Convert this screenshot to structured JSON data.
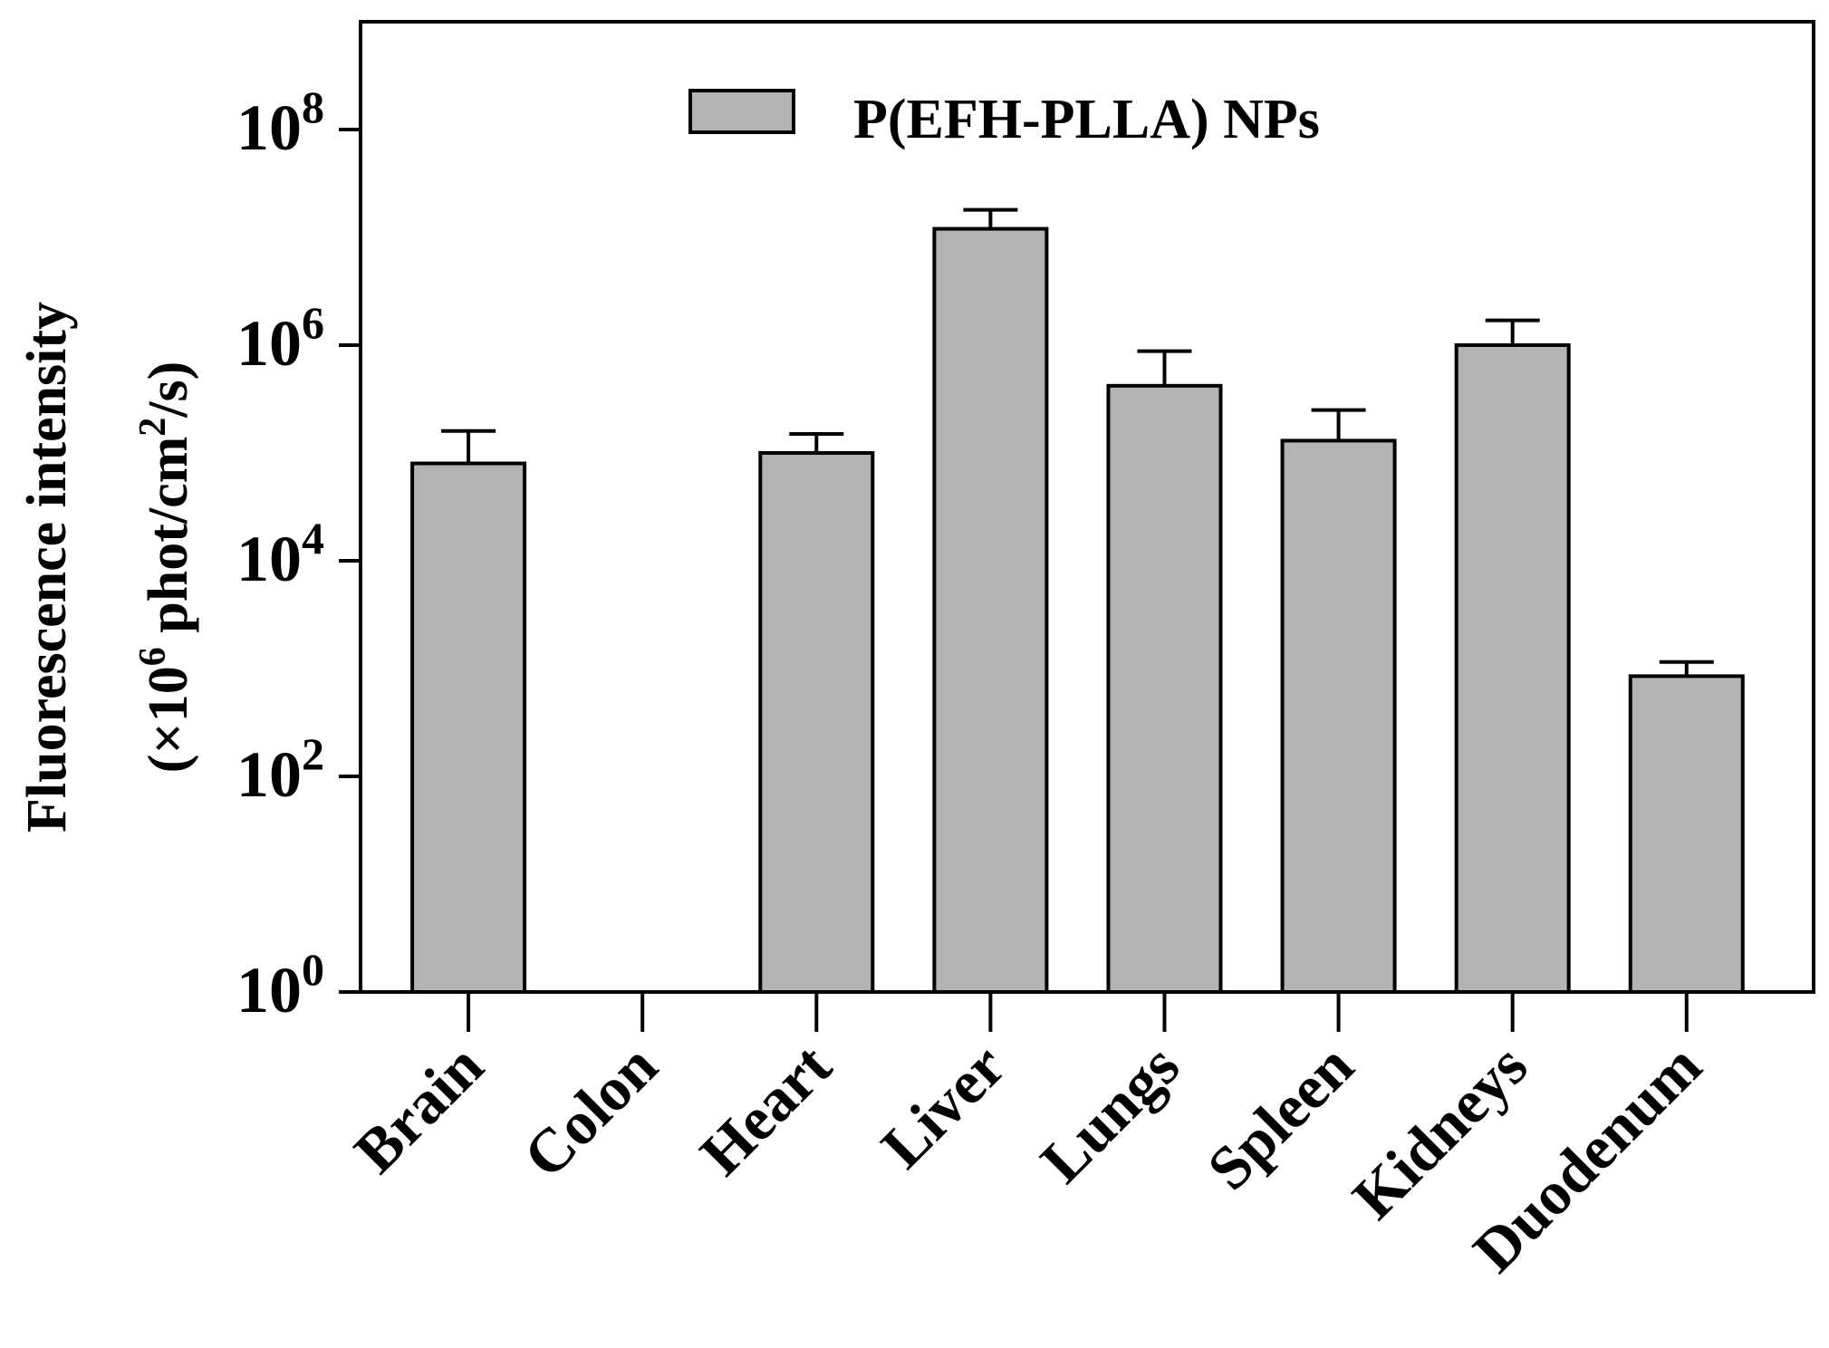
{
  "chart_data": {
    "type": "bar",
    "y_scale": "log10",
    "ylim": [
      1,
      1000000000
    ],
    "yticks": [
      {
        "exp": 0,
        "base": "10",
        "sup": "0"
      },
      {
        "exp": 2,
        "base": "10",
        "sup": "2"
      },
      {
        "exp": 4,
        "base": "10",
        "sup": "4"
      },
      {
        "exp": 6,
        "base": "10",
        "sup": "6"
      },
      {
        "exp": 8,
        "base": "10",
        "sup": "8"
      }
    ],
    "ylabel": {
      "line1": "Fluorescence intensity",
      "line2_prefix": "(×10",
      "line2_sup1": "6",
      "line2_mid": " phot/cm",
      "line2_sup2": "2",
      "line2_suffix": "/s)"
    },
    "legend": {
      "label": "P(EFH-PLLA) NPs",
      "position": "top-center"
    },
    "categories": [
      "Brain",
      "Colon",
      "Heart",
      "Liver",
      "Lungs",
      "Spleen",
      "Kidneys",
      "Duodenum"
    ],
    "series": [
      {
        "name": "P(EFH-PLLA) NPs",
        "color": "#b3b3b3",
        "values": [
          80000,
          null,
          100000,
          12000000,
          420000,
          130000,
          1000000,
          850
        ],
        "error_upper": [
          160000,
          null,
          150000,
          18000000,
          880000,
          250000,
          1700000,
          1150
        ]
      }
    ]
  }
}
